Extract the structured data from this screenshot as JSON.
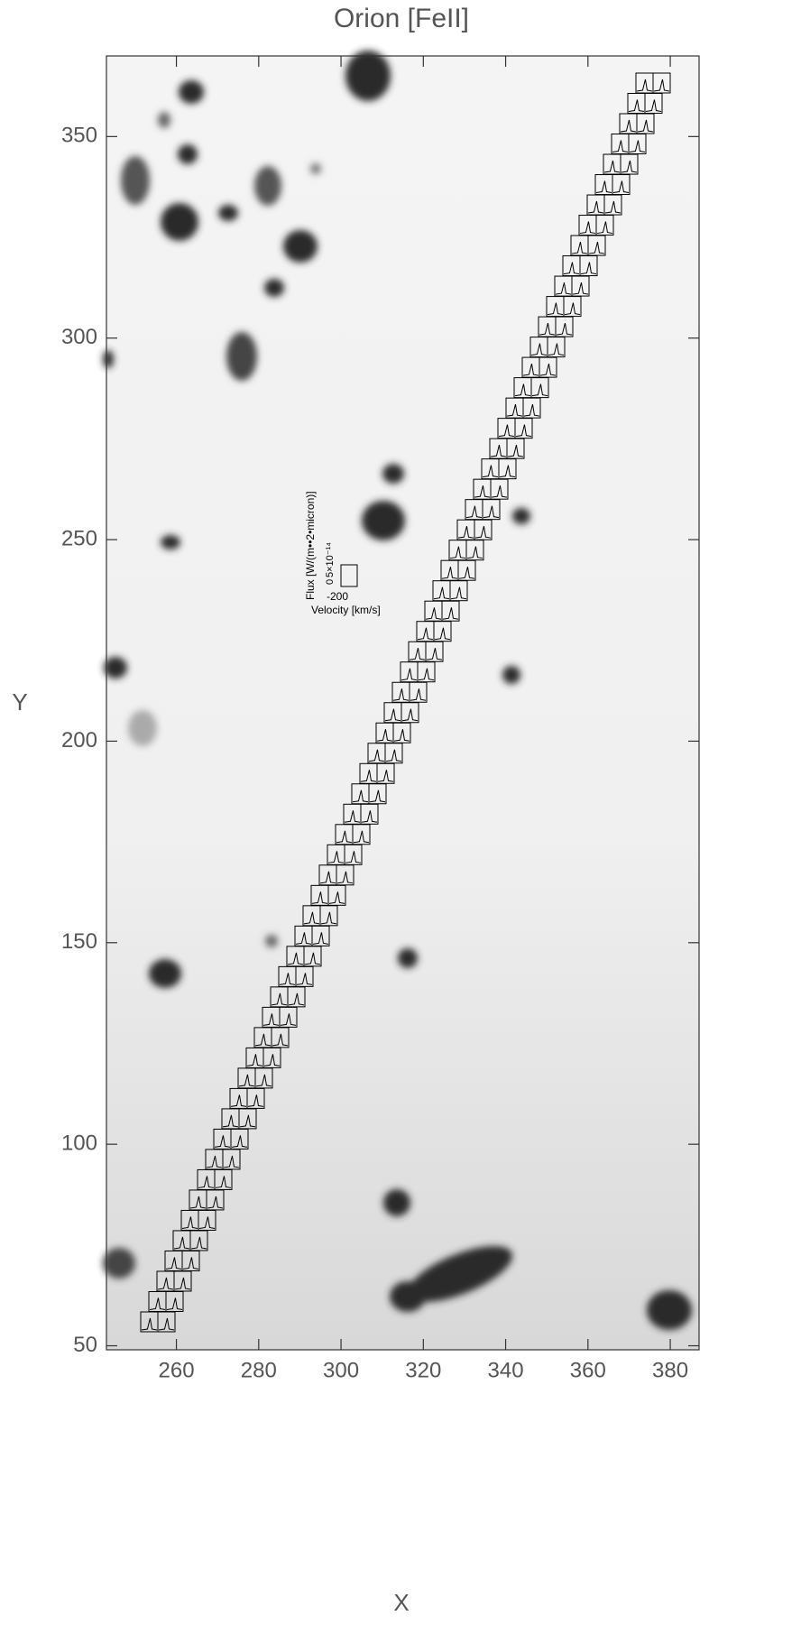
{
  "chart_data": {
    "type": "image",
    "title": "Orion [FeII]",
    "x_label": "X",
    "y_label": "Y",
    "xlim": [
      243,
      387
    ],
    "xticks": [
      260,
      280,
      300,
      320,
      340,
      360,
      380
    ],
    "ylim": [
      49,
      370
    ],
    "yticks": [
      50,
      100,
      150,
      200,
      250,
      300,
      350
    ],
    "inset": {
      "y_label": "Flux [W/(m••2•micron)]",
      "y_tick_low": "0",
      "y_tick_high": "5×10⁻¹⁴",
      "x_tick": "-200",
      "x_label": "Velocity [km/s]"
    }
  }
}
